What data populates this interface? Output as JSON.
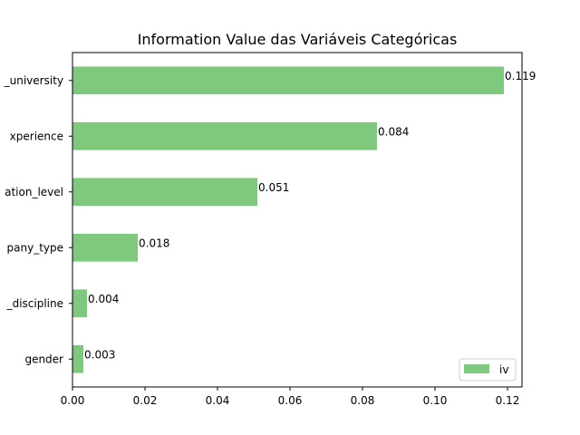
{
  "chart_data": {
    "type": "bar",
    "orientation": "horizontal",
    "title": "Information Value das Variáveis Categóricas",
    "xlabel": "",
    "ylabel": "",
    "categories": [
      "gender",
      "major_discipline",
      "company_type",
      "education_level",
      "relevent_experience",
      "enrolled_university"
    ],
    "category_labels_visible": [
      "gender",
      "_discipline",
      "pany_type",
      "ation_level",
      "xperience",
      "_university"
    ],
    "series": [
      {
        "name": "iv",
        "values": [
          0.003,
          0.004,
          0.018,
          0.051,
          0.084,
          0.119
        ],
        "color": "#7fc97f"
      }
    ],
    "data_labels": [
      "0.003",
      "0.004",
      "0.018",
      "0.051",
      "0.084",
      "0.119"
    ],
    "xlim": [
      0,
      0.124
    ],
    "xticks": [
      0.0,
      0.02,
      0.04,
      0.06,
      0.08,
      0.1,
      0.12
    ],
    "xtick_labels": [
      "0.00",
      "0.02",
      "0.04",
      "0.06",
      "0.08",
      "0.10",
      "0.12"
    ],
    "grid": false,
    "legend": {
      "position": "lower-right",
      "label": "iv"
    }
  }
}
